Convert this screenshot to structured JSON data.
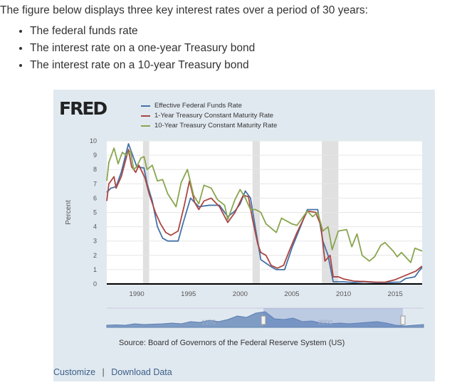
{
  "intro": "The figure below displays three key interest rates over a period of 30 years:",
  "bullets": [
    "The federal funds rate",
    "The interest rate on a one-year Treasury bond",
    "The interest rate on a 10-year Treasury bond"
  ],
  "logo": "FRED",
  "source": "Source: Board of Governors of the Federal Reserve System (US)",
  "links": {
    "customize": "Customize",
    "separator": "|",
    "download": "Download Data"
  },
  "navigator": {
    "labels": [
      "1975",
      "2000"
    ]
  },
  "chart_data": {
    "type": "line",
    "ylabel": "Percent",
    "xlim": [
      1987.1,
      2017.6
    ],
    "ylim": [
      0,
      10
    ],
    "yticks": [
      "0",
      "1",
      "2",
      "3",
      "4",
      "5",
      "6",
      "7",
      "8",
      "9",
      "10"
    ],
    "xticks": [
      "1990",
      "1995",
      "2000",
      "2005",
      "2010",
      "2015"
    ],
    "recessions": [
      [
        1990.6,
        1991.2
      ],
      [
        2001.2,
        2001.9
      ],
      [
        2007.9,
        2009.5
      ]
    ],
    "series": [
      {
        "name": "Effective Federal Funds Rate",
        "color": "#4572a7",
        "points": [
          [
            1987.1,
            6.4
          ],
          [
            1987.5,
            6.7
          ],
          [
            1988,
            6.8
          ],
          [
            1988.5,
            7.8
          ],
          [
            1989.2,
            9.8
          ],
          [
            1989.5,
            9.2
          ],
          [
            1990,
            8.2
          ],
          [
            1990.7,
            8.1
          ],
          [
            1991,
            7
          ],
          [
            1991.5,
            5.8
          ],
          [
            1992,
            4.0
          ],
          [
            1992.5,
            3.2
          ],
          [
            1993,
            3.0
          ],
          [
            1994,
            3.0
          ],
          [
            1994.5,
            4.3
          ],
          [
            1995.2,
            6.0
          ],
          [
            1996,
            5.4
          ],
          [
            1997,
            5.5
          ],
          [
            1998,
            5.5
          ],
          [
            1998.8,
            4.7
          ],
          [
            1999.5,
            5.1
          ],
          [
            2000,
            5.6
          ],
          [
            2000.5,
            6.5
          ],
          [
            2001,
            6.0
          ],
          [
            2001.5,
            3.8
          ],
          [
            2002,
            1.7
          ],
          [
            2003,
            1.2
          ],
          [
            2003.5,
            1.0
          ],
          [
            2004.3,
            1.0
          ],
          [
            2005,
            2.5
          ],
          [
            2006,
            4.3
          ],
          [
            2006.5,
            5.2
          ],
          [
            2007.5,
            5.2
          ],
          [
            2008,
            3.0
          ],
          [
            2008.5,
            2.0
          ],
          [
            2009,
            0.15
          ],
          [
            2010,
            0.15
          ],
          [
            2011,
            0.1
          ],
          [
            2012,
            0.15
          ],
          [
            2013,
            0.1
          ],
          [
            2014,
            0.1
          ],
          [
            2015.5,
            0.13
          ],
          [
            2016,
            0.38
          ],
          [
            2016.9,
            0.5
          ],
          [
            2017.3,
            0.9
          ],
          [
            2017.6,
            1.15
          ]
        ]
      },
      {
        "name": "1-Year Treasury Constant Maturity Rate",
        "color": "#aa4643",
        "points": [
          [
            1987.1,
            5.8
          ],
          [
            1987.3,
            7.0
          ],
          [
            1987.8,
            7.5
          ],
          [
            1988,
            6.7
          ],
          [
            1988.5,
            7.5
          ],
          [
            1989.2,
            9.4
          ],
          [
            1989.5,
            8.2
          ],
          [
            1989.9,
            7.8
          ],
          [
            1990.2,
            8.3
          ],
          [
            1990.8,
            7.4
          ],
          [
            1991.2,
            6.3
          ],
          [
            1991.8,
            5.0
          ],
          [
            1992.3,
            4.2
          ],
          [
            1992.8,
            3.6
          ],
          [
            1993.3,
            3.4
          ],
          [
            1994,
            3.7
          ],
          [
            1994.6,
            5.5
          ],
          [
            1995.1,
            7.2
          ],
          [
            1995.6,
            5.7
          ],
          [
            1996,
            5.2
          ],
          [
            1996.5,
            5.8
          ],
          [
            1997.2,
            6.0
          ],
          [
            1998,
            5.4
          ],
          [
            1998.8,
            4.3
          ],
          [
            1999.5,
            5.0
          ],
          [
            2000.3,
            6.2
          ],
          [
            2000.8,
            6.1
          ],
          [
            2001.2,
            4.5
          ],
          [
            2001.7,
            2.8
          ],
          [
            2002,
            2.2
          ],
          [
            2002.5,
            2.0
          ],
          [
            2003,
            1.3
          ],
          [
            2003.6,
            1.1
          ],
          [
            2004.2,
            1.3
          ],
          [
            2004.8,
            2.4
          ],
          [
            2005.5,
            3.6
          ],
          [
            2006.5,
            5.1
          ],
          [
            2007.3,
            5.0
          ],
          [
            2007.8,
            4.1
          ],
          [
            2008.2,
            1.6
          ],
          [
            2008.7,
            2.0
          ],
          [
            2009,
            0.5
          ],
          [
            2009.5,
            0.5
          ],
          [
            2010,
            0.35
          ],
          [
            2011,
            0.2
          ],
          [
            2012,
            0.17
          ],
          [
            2013,
            0.13
          ],
          [
            2014,
            0.12
          ],
          [
            2015,
            0.3
          ],
          [
            2016,
            0.6
          ],
          [
            2017,
            0.9
          ],
          [
            2017.6,
            1.25
          ]
        ]
      },
      {
        "name": "10-Year Treasury Constant Maturity Rate",
        "color": "#89a54e",
        "points": [
          [
            1987.1,
            7.2
          ],
          [
            1987.3,
            8.5
          ],
          [
            1987.8,
            9.5
          ],
          [
            1988.2,
            8.4
          ],
          [
            1988.6,
            9.2
          ],
          [
            1989,
            9.0
          ],
          [
            1989.4,
            9.3
          ],
          [
            1989.7,
            8.0
          ],
          [
            1990,
            8.2
          ],
          [
            1990.4,
            8.8
          ],
          [
            1990.7,
            8.9
          ],
          [
            1991,
            8.0
          ],
          [
            1991.5,
            8.3
          ],
          [
            1992,
            7.2
          ],
          [
            1992.5,
            7.3
          ],
          [
            1993,
            6.3
          ],
          [
            1993.8,
            5.4
          ],
          [
            1994.3,
            7.1
          ],
          [
            1994.9,
            8.0
          ],
          [
            1995.5,
            6.2
          ],
          [
            1996,
            5.6
          ],
          [
            1996.5,
            6.9
          ],
          [
            1997.2,
            6.7
          ],
          [
            1997.8,
            5.9
          ],
          [
            1998.5,
            5.5
          ],
          [
            1998.8,
            4.5
          ],
          [
            1999.5,
            5.9
          ],
          [
            2000,
            6.6
          ],
          [
            2000.5,
            6.0
          ],
          [
            2001,
            5.2
          ],
          [
            2001.5,
            5.2
          ],
          [
            2002,
            5.0
          ],
          [
            2002.5,
            4.2
          ],
          [
            2003.5,
            3.6
          ],
          [
            2004,
            4.6
          ],
          [
            2005,
            4.2
          ],
          [
            2005.5,
            4.1
          ],
          [
            2006.5,
            5.1
          ],
          [
            2007,
            4.7
          ],
          [
            2007.5,
            5.0
          ],
          [
            2008,
            3.7
          ],
          [
            2008.5,
            4.0
          ],
          [
            2008.9,
            2.4
          ],
          [
            2009.5,
            3.7
          ],
          [
            2010.3,
            3.8
          ],
          [
            2010.8,
            2.6
          ],
          [
            2011.3,
            3.5
          ],
          [
            2011.8,
            2.0
          ],
          [
            2012.5,
            1.6
          ],
          [
            2013,
            1.9
          ],
          [
            2013.6,
            2.7
          ],
          [
            2014,
            2.9
          ],
          [
            2014.8,
            2.3
          ],
          [
            2015.2,
            1.9
          ],
          [
            2015.6,
            2.2
          ],
          [
            2016.5,
            1.5
          ],
          [
            2016.9,
            2.5
          ],
          [
            2017.6,
            2.3
          ]
        ]
      }
    ]
  }
}
